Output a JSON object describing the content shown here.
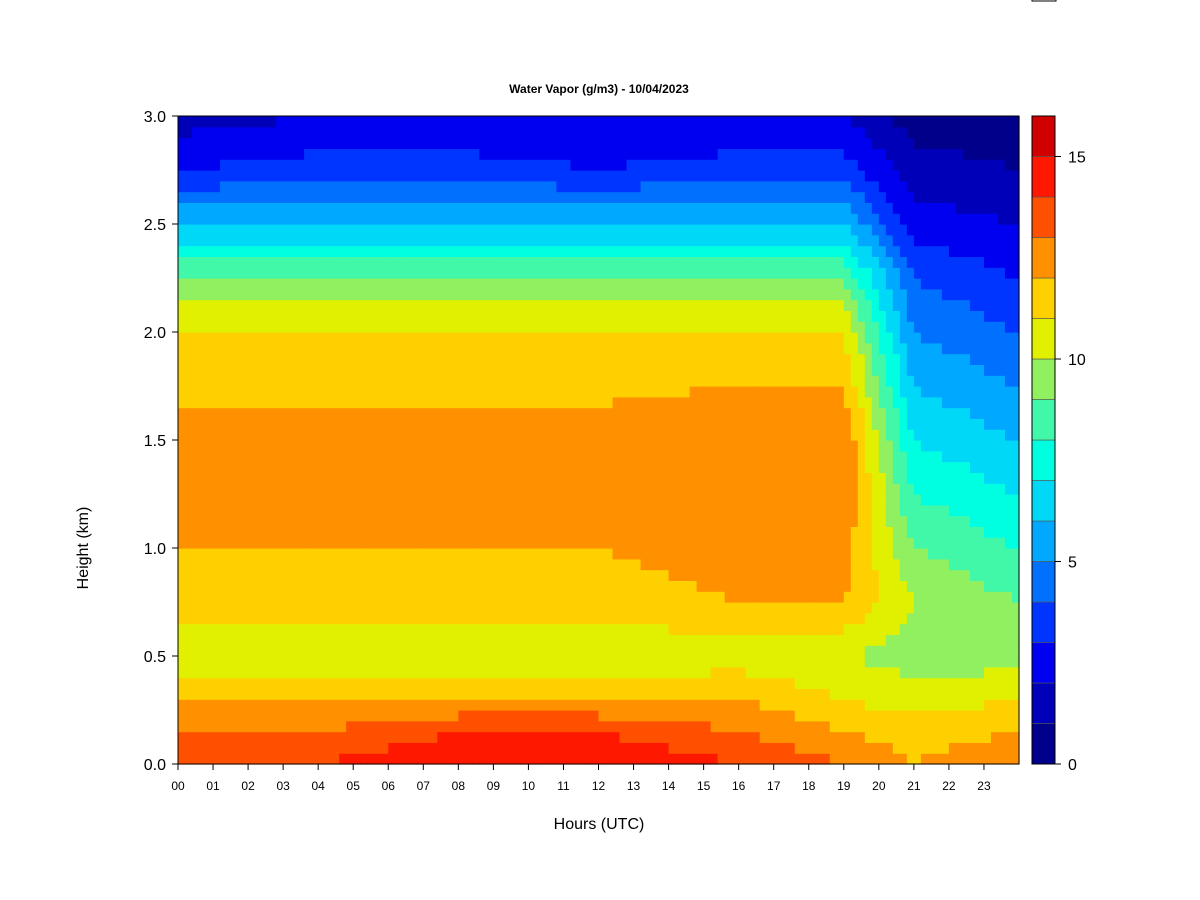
{
  "chart_data": {
    "type": "heatmap",
    "title": "Water Vapor (g/m3) - 10/04/2023",
    "xlabel": "Hours (UTC)",
    "ylabel": "Height (km)",
    "x_ticks": [
      "00",
      "01",
      "02",
      "03",
      "04",
      "05",
      "06",
      "07",
      "08",
      "09",
      "10",
      "11",
      "12",
      "13",
      "14",
      "15",
      "16",
      "17",
      "18",
      "19",
      "20",
      "21",
      "22",
      "23"
    ],
    "x_range": [
      0,
      24
    ],
    "y_ticks": [
      "0.0",
      "0.5",
      "1.0",
      "1.5",
      "2.0",
      "2.5",
      "3.0"
    ],
    "y_range": [
      0,
      3.0
    ],
    "colorbar": {
      "range": [
        0,
        16
      ],
      "ticks": [
        "0",
        "5",
        "10",
        "15"
      ],
      "colors": [
        "#00008b",
        "#0000b8",
        "#0000f0",
        "#0035ff",
        "#0070ff",
        "#00a8ff",
        "#00d8f8",
        "#00ffe0",
        "#40f8a8",
        "#90f060",
        "#e0f000",
        "#ffd000",
        "#ff9000",
        "#ff5000",
        "#ff1800",
        "#d00000"
      ]
    },
    "grid": false,
    "profiles": [
      {
        "hour": 0,
        "heights_km": [
          0.0,
          0.15,
          0.3,
          0.5,
          0.75,
          1.0,
          1.5,
          2.0,
          2.25,
          2.5,
          2.75,
          3.0
        ],
        "values_gm3": [
          14,
          13,
          12,
          10,
          11.5,
          12,
          12.5,
          11,
          9,
          6,
          3,
          1.5
        ]
      },
      {
        "hour": 4,
        "heights_km": [
          0.0,
          0.15,
          0.3,
          0.5,
          0.75,
          1.0,
          1.5,
          2.0,
          2.25,
          2.5,
          2.75,
          3.0
        ],
        "values_gm3": [
          14,
          13,
          12,
          10,
          11.5,
          12,
          12.5,
          11,
          9,
          6,
          3.5,
          2
        ]
      },
      {
        "hour": 8,
        "heights_km": [
          0.0,
          0.15,
          0.3,
          0.5,
          0.75,
          1.0,
          1.5,
          2.0,
          2.25,
          2.5,
          2.75,
          3.0
        ],
        "values_gm3": [
          15,
          14,
          12,
          10,
          11.5,
          12,
          12.5,
          11,
          9,
          6,
          3.5,
          2
        ]
      },
      {
        "hour": 12,
        "heights_km": [
          0.0,
          0.15,
          0.3,
          0.5,
          0.75,
          1.0,
          1.5,
          2.0,
          2.25,
          2.5,
          2.75,
          3.0
        ],
        "values_gm3": [
          15,
          14,
          12,
          10,
          11.5,
          12,
          12.5,
          11,
          9,
          6,
          3,
          2
        ]
      },
      {
        "hour": 16,
        "heights_km": [
          0.0,
          0.15,
          0.3,
          0.5,
          0.75,
          1.0,
          1.5,
          2.0,
          2.25,
          2.5,
          2.75,
          3.0
        ],
        "values_gm3": [
          14,
          13,
          12,
          10.5,
          12,
          12.5,
          13,
          11,
          9,
          6,
          3.5,
          2
        ]
      },
      {
        "hour": 19,
        "heights_km": [
          0.0,
          0.15,
          0.3,
          0.5,
          0.75,
          1.0,
          1.5,
          2.0,
          2.25,
          2.5,
          2.75,
          3.0
        ],
        "values_gm3": [
          13,
          12,
          11,
          10,
          12,
          12.5,
          13,
          11,
          9,
          6,
          3.5,
          2
        ]
      },
      {
        "hour": 21,
        "heights_km": [
          0.0,
          0.15,
          0.3,
          0.5,
          0.75,
          1.0,
          1.5,
          2.0,
          2.25,
          2.5,
          2.75,
          3.0
        ],
        "values_gm3": [
          12,
          11.5,
          10.5,
          9.5,
          10,
          9,
          7,
          5,
          4,
          2.5,
          1.5,
          0.5
        ]
      },
      {
        "hour": 24,
        "heights_km": [
          0.0,
          0.15,
          0.3,
          0.5,
          0.75,
          1.0,
          1.5,
          2.0,
          2.25,
          2.5,
          2.75,
          3.0
        ],
        "values_gm3": [
          13,
          12,
          11,
          9.5,
          9,
          8,
          6,
          4,
          3,
          2,
          1,
          0.3
        ]
      }
    ]
  }
}
